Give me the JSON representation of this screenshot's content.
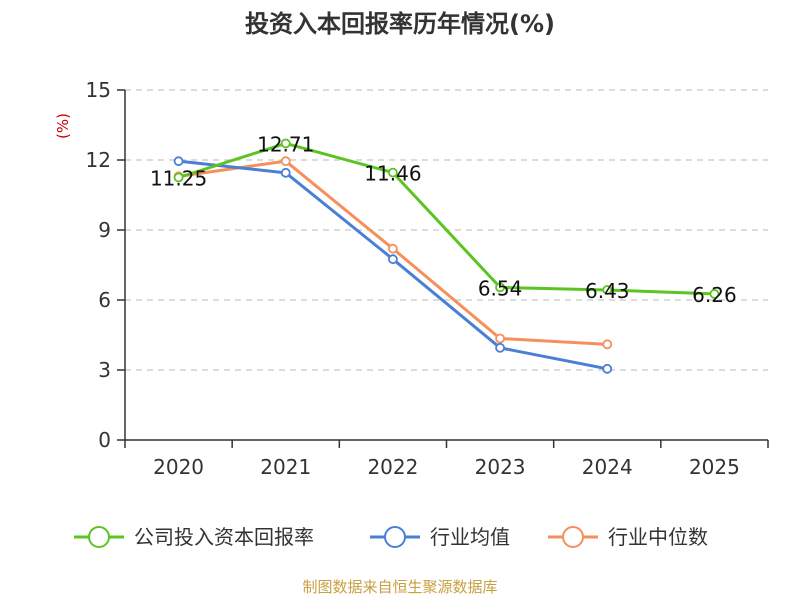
{
  "chart_data": {
    "type": "line",
    "title": "投资入本回报率历年情况(%)",
    "ylabel": "(%)",
    "xlabel": "",
    "ylim": [
      0,
      15
    ],
    "yticks": [
      0,
      3,
      6,
      9,
      12,
      15
    ],
    "categories": [
      "2020",
      "2021",
      "2022",
      "2023",
      "2024",
      "2025"
    ],
    "grid": true,
    "legend_position": "bottom",
    "series": [
      {
        "name": "公司投入资本回报率",
        "color": "#5cc421",
        "values": [
          11.25,
          12.71,
          11.46,
          6.54,
          6.43,
          6.26
        ],
        "labels": [
          "11.25",
          "12.71",
          "11.46",
          "6.54",
          "6.43",
          "6.26"
        ]
      },
      {
        "name": "行业均值",
        "color": "#4a7fd6",
        "values": [
          11.95,
          11.45,
          7.75,
          3.95,
          3.05,
          null
        ]
      },
      {
        "name": "行业中位数",
        "color": "#f58f5c",
        "values": [
          11.3,
          11.95,
          8.2,
          4.35,
          4.1,
          null
        ]
      }
    ],
    "source": "制图数据来自恒生聚源数据库"
  }
}
